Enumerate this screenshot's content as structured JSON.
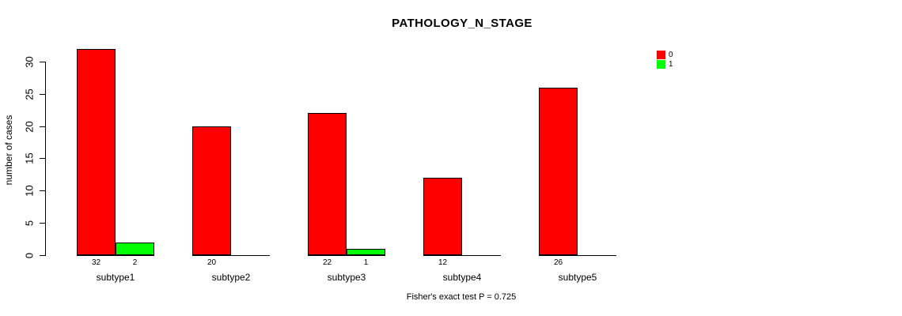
{
  "chart_data": {
    "type": "bar",
    "title": "PATHOLOGY_N_STAGE",
    "xlabel": "",
    "ylabel": "number of cases",
    "categories": [
      "subtype1",
      "subtype2",
      "subtype3",
      "subtype4",
      "subtype5"
    ],
    "series": [
      {
        "name": "0",
        "color": "#ff0000",
        "values": [
          32,
          20,
          22,
          12,
          26
        ]
      },
      {
        "name": "1",
        "color": "#00ff00",
        "values": [
          2,
          0,
          1,
          0,
          0
        ]
      }
    ],
    "yticks": [
      0,
      5,
      10,
      15,
      20,
      25,
      30
    ],
    "ylim": [
      0,
      30
    ],
    "grid": false,
    "legend_position": "top-right",
    "legend_entries": [
      {
        "label": "0",
        "color": "#ff0000"
      },
      {
        "label": "1",
        "color": "#00ff00"
      }
    ],
    "bar_value_labels": [
      [
        "32",
        ""
      ],
      [
        "20",
        ""
      ],
      [
        "22",
        ""
      ],
      [
        "12",
        ""
      ],
      [
        "26",
        ""
      ]
    ],
    "bar_value_labels_series2": [
      "2",
      "",
      "1",
      "",
      ""
    ],
    "annotation": "Fisher's exact test P = 0.725",
    "axis_color": "#000000",
    "text_color": "#000000",
    "background_color": "#ffffff"
  }
}
